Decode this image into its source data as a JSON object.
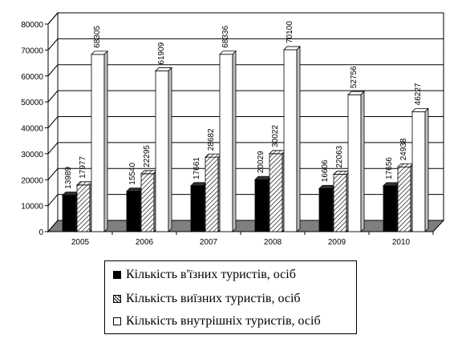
{
  "colors": {
    "series1": "#000000",
    "series2": "hatch",
    "series3": "#ffffff",
    "wall": "#ffffff",
    "floor": "#7f7f7f"
  },
  "chart_data": {
    "type": "bar",
    "categories": [
      "2005",
      "2006",
      "2007",
      "2008",
      "2009",
      "2010"
    ],
    "series": [
      {
        "name": "Кількість в'їзних туристів, осіб",
        "values": [
          13989,
          15540,
          17661,
          20029,
          16606,
          17656
        ]
      },
      {
        "name": "Кількість виїзних туристів, осіб",
        "values": [
          17977,
          22295,
          28682,
          30022,
          22063,
          24938
        ]
      },
      {
        "name": "Кількість внутрішніх туристів, осіб",
        "values": [
          68305,
          61909,
          68336,
          70100,
          52756,
          46227
        ]
      }
    ],
    "y_ticks": [
      "0",
      "10000",
      "20000",
      "30000",
      "40000",
      "50000",
      "60000",
      "70000",
      "80000"
    ],
    "ylim": [
      0,
      80000
    ],
    "grid": true,
    "legend_position": "bottom",
    "three_d": true
  }
}
